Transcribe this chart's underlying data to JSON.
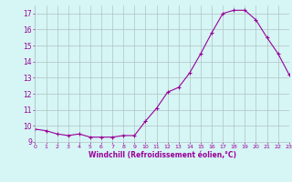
{
  "x": [
    0,
    1,
    2,
    3,
    4,
    5,
    6,
    7,
    8,
    9,
    10,
    11,
    12,
    13,
    14,
    15,
    16,
    17,
    18,
    19,
    20,
    21,
    22,
    23
  ],
  "y": [
    9.8,
    9.7,
    9.5,
    9.4,
    9.5,
    9.3,
    9.3,
    9.3,
    9.4,
    9.4,
    10.3,
    11.1,
    12.1,
    12.4,
    13.3,
    14.5,
    15.8,
    17.0,
    17.2,
    17.2,
    16.6,
    15.5,
    14.5,
    13.2
  ],
  "line_color": "#990099",
  "marker": "+",
  "marker_size": 3,
  "linewidth": 0.8,
  "bg_color": "#d6f5f5",
  "grid_color": "#b0c4c4",
  "xlabel": "Windchill (Refroidissement éolien,°C)",
  "xlabel_color": "#990099",
  "tick_color": "#990099",
  "ylim": [
    9,
    17.5
  ],
  "xlim": [
    0,
    23
  ],
  "yticks": [
    9,
    10,
    11,
    12,
    13,
    14,
    15,
    16,
    17
  ],
  "xticks": [
    0,
    1,
    2,
    3,
    4,
    5,
    6,
    7,
    8,
    9,
    10,
    11,
    12,
    13,
    14,
    15,
    16,
    17,
    18,
    19,
    20,
    21,
    22,
    23
  ],
  "figsize": [
    3.2,
    2.0
  ],
  "dpi": 100
}
